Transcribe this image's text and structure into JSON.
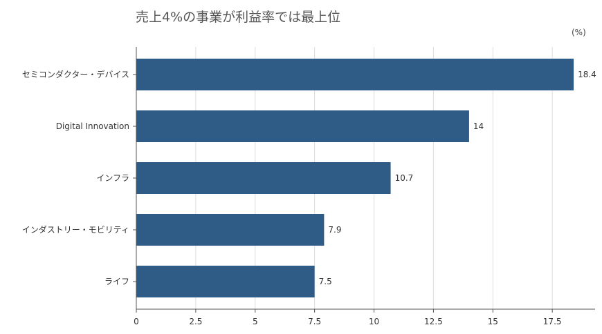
{
  "chart_data": {
    "type": "bar",
    "orientation": "horizontal",
    "title": "売上4%の事業が利益率では最上位",
    "unit_label": "(%)",
    "categories": [
      "セミコンダクター・デバイス",
      "Digital Innovation",
      "インフラ",
      "インダストリー・モビリティ",
      "ライフ"
    ],
    "values": [
      18.4,
      14,
      10.7,
      7.9,
      7.5
    ],
    "value_labels": [
      "18.4",
      "14",
      "10.7",
      "7.9",
      "7.5"
    ],
    "x_ticks": [
      "0",
      "2.5",
      "5",
      "7.5",
      "10",
      "12.5",
      "15",
      "17.5"
    ],
    "xlim": [
      0,
      19.3
    ],
    "grid": "vertical",
    "legend": "none",
    "bar_color": "#2e5c87"
  }
}
